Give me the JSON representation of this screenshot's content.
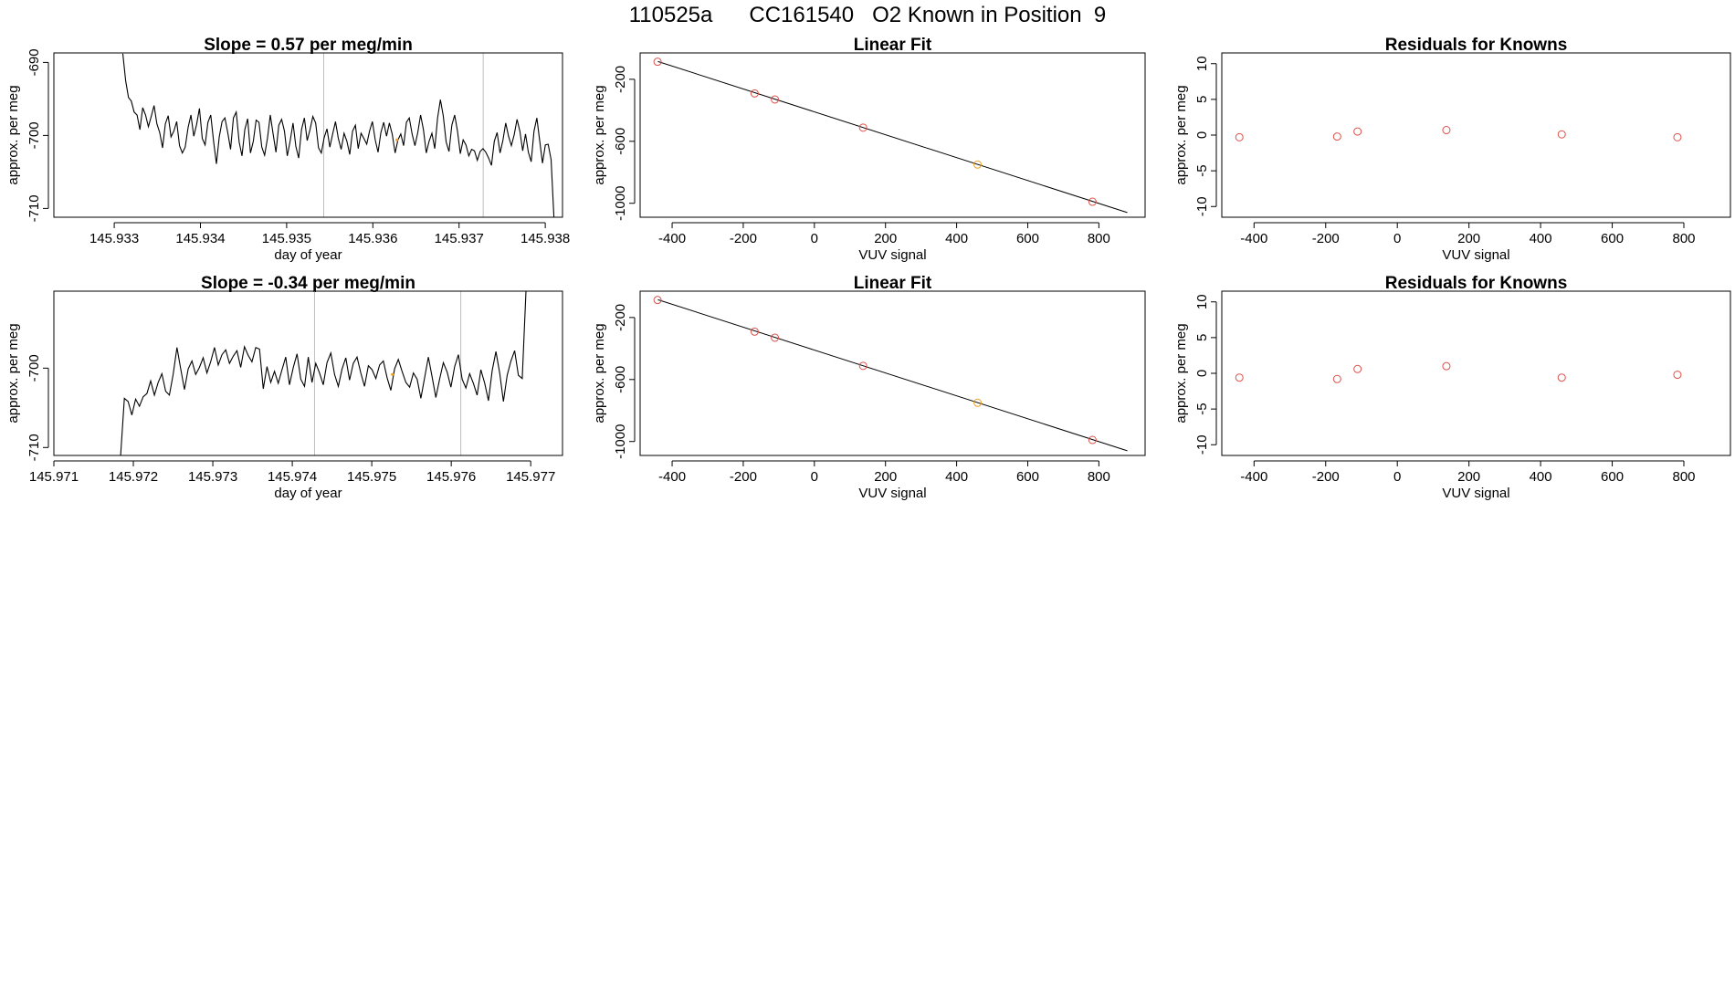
{
  "page": {
    "title": "110525a      CC161540   O2 Known in Position  9"
  },
  "colors": {
    "line": "#000000",
    "vline": "#bebebe",
    "point_red": "#e0504a",
    "point_orange": "#f0a020",
    "frame": "#000000"
  },
  "chart_data": [
    {
      "id": "ts1",
      "type": "line",
      "title": "Slope =  0.57  per meg/min",
      "xlabel": "day of year",
      "ylabel": "approx. per meg",
      "xlim": [
        145.9323,
        145.9382
      ],
      "ylim": [
        -711.2,
        -688.7
      ],
      "xticks": [
        "145.933",
        "145.934",
        "145.935",
        "145.936",
        "145.937",
        "145.938"
      ],
      "xtick_values": [
        145.933,
        145.934,
        145.935,
        145.936,
        145.937,
        145.938
      ],
      "yticks": [
        "-690",
        "-700",
        "-710"
      ],
      "ytick_values": [
        -690,
        -700,
        -710
      ],
      "vlines": [
        145.93543,
        145.93728
      ],
      "highlight": {
        "x": 145.93628,
        "y": -700.6
      },
      "series": [
        {
          "x_start": 145.9331,
          "x_end": 145.9381,
          "values": [
            -688.8,
            -692.5,
            -694.8,
            -695.3,
            -696.8,
            -697.2,
            -699.2,
            -696.2,
            -697.2,
            -698.8,
            -697.4,
            -695.9,
            -698.4,
            -699.6,
            -701.7,
            -698.4,
            -697.3,
            -700.2,
            -699.4,
            -698.1,
            -701.4,
            -702.4,
            -701.6,
            -698.9,
            -697.2,
            -700.1,
            -698.5,
            -696.3,
            -700.4,
            -701.3,
            -698.2,
            -697.2,
            -700.8,
            -703.9,
            -700.2,
            -698.1,
            -697.6,
            -699.6,
            -701.9,
            -697.6,
            -696.8,
            -700.9,
            -702.8,
            -699.2,
            -697.7,
            -702.4,
            -700.8,
            -697.9,
            -698.2,
            -701.6,
            -702.7,
            -700.4,
            -697.2,
            -699.8,
            -702.3,
            -698.6,
            -697.8,
            -699.4,
            -702.8,
            -700.8,
            -698.3,
            -701.5,
            -703.1,
            -699.2,
            -697.6,
            -700.7,
            -699.2,
            -697.4,
            -698.3,
            -701.7,
            -702.4,
            -700.3,
            -699.1,
            -701.6,
            -699.8,
            -698.1,
            -700.4,
            -701.9,
            -699.7,
            -700.8,
            -702.6,
            -699.4,
            -698.6,
            -701.8,
            -699.7,
            -700.4,
            -701.2,
            -699.4,
            -698.1,
            -700.6,
            -702.3,
            -699.6,
            -698.2,
            -700.1,
            -698.3,
            -699.8,
            -702.4,
            -700.6,
            -699.8,
            -701.4,
            -698.2,
            -697.6,
            -699.8,
            -701.4,
            -699.6,
            -697.2,
            -699.2,
            -702.4,
            -700.8,
            -699.7,
            -701.8,
            -697.6,
            -695.1,
            -697.3,
            -700.9,
            -702.2,
            -698.6,
            -697.2,
            -699.4,
            -702.5,
            -700.6,
            -701.3,
            -702.8,
            -701.9,
            -702.1,
            -703.4,
            -702.2,
            -701.8,
            -702.3,
            -703.1,
            -704.1,
            -700.8,
            -699.6,
            -702.4,
            -700.7,
            -698.3,
            -700.1,
            -701.4,
            -699.9,
            -697.8,
            -699.4,
            -702.1,
            -699.8,
            -702.3,
            -703.6,
            -699.4,
            -697.6,
            -700.7,
            -703.8,
            -701.3,
            -701.2,
            -703.3,
            -711.2
          ]
        }
      ]
    },
    {
      "id": "fit1",
      "type": "scatter",
      "title": "Linear Fit",
      "xlabel": "VUV signal",
      "ylabel": "approx. per meg",
      "xlim": [
        -490,
        930
      ],
      "ylim": [
        -1090,
        -30
      ],
      "xticks": [
        "-400",
        "-200",
        "0",
        "200",
        "400",
        "600",
        "800"
      ],
      "xtick_values": [
        -400,
        -200,
        0,
        200,
        400,
        600,
        800
      ],
      "yticks": [
        "-200",
        "-600",
        "-1000"
      ],
      "ytick_values": [
        -200,
        -600,
        -1000
      ],
      "fit_line": {
        "x": [
          -440,
          880
        ],
        "y": [
          -85,
          -1060
        ]
      },
      "points": [
        {
          "x": -441,
          "y": -87,
          "color": "red"
        },
        {
          "x": -168,
          "y": -291,
          "color": "red"
        },
        {
          "x": -111,
          "y": -330,
          "color": "red"
        },
        {
          "x": 137,
          "y": -512,
          "color": "red"
        },
        {
          "x": 459,
          "y": -750,
          "color": "orange"
        },
        {
          "x": 782,
          "y": -990,
          "color": "red"
        }
      ]
    },
    {
      "id": "res1",
      "type": "scatter",
      "title": "Residuals for Knowns",
      "xlabel": "VUV signal",
      "ylabel": "approx. per meg",
      "xlim": [
        -490,
        930
      ],
      "ylim": [
        -11.5,
        11.5
      ],
      "xticks": [
        "-400",
        "-200",
        "0",
        "200",
        "400",
        "600",
        "800"
      ],
      "xtick_values": [
        -400,
        -200,
        0,
        200,
        400,
        600,
        800
      ],
      "yticks": [
        "10",
        "5",
        "0",
        "-5",
        "-10"
      ],
      "ytick_values": [
        10,
        5,
        0,
        -5,
        -10
      ],
      "points": [
        {
          "x": -441,
          "y": -0.3,
          "color": "red"
        },
        {
          "x": -168,
          "y": -0.2,
          "color": "red"
        },
        {
          "x": -111,
          "y": 0.5,
          "color": "red"
        },
        {
          "x": 137,
          "y": 0.7,
          "color": "red"
        },
        {
          "x": 459,
          "y": 0.1,
          "color": "red"
        },
        {
          "x": 782,
          "y": -0.3,
          "color": "red"
        }
      ]
    },
    {
      "id": "ts2",
      "type": "line",
      "title": "Slope =  -0.34  per meg/min",
      "xlabel": "day of year",
      "ylabel": "approx. per meg",
      "xlim": [
        145.971,
        145.9774
      ],
      "ylim": [
        -711.0,
        -690.3
      ],
      "xticks": [
        "145.971",
        "145.972",
        "145.973",
        "145.974",
        "145.975",
        "145.976",
        "145.977"
      ],
      "xtick_values": [
        145.971,
        145.972,
        145.973,
        145.974,
        145.975,
        145.976,
        145.977
      ],
      "yticks": [
        "-700",
        "-710"
      ],
      "ytick_values": [
        -700,
        -710
      ],
      "vlines": [
        145.97428,
        145.97612
      ],
      "highlight": {
        "x": 145.97526,
        "y": -700.8
      },
      "series": [
        {
          "x_start": 145.97184,
          "x_end": 145.97694,
          "values": [
            -711.0,
            -703.8,
            -704.2,
            -705.9,
            -703.9,
            -704.8,
            -703.6,
            -703.2,
            -701.6,
            -703.4,
            -701.8,
            -700.7,
            -702.9,
            -703.4,
            -700.8,
            -697.4,
            -700.1,
            -702.7,
            -700.1,
            -699.1,
            -700.8,
            -699.9,
            -698.7,
            -700.6,
            -699.2,
            -697.4,
            -699.6,
            -698.3,
            -697.7,
            -699.4,
            -698.5,
            -697.8,
            -699.9,
            -697.3,
            -698.4,
            -699.2,
            -697.4,
            -697.6,
            -702.6,
            -699.8,
            -701.8,
            -700.4,
            -701.9,
            -700.2,
            -698.6,
            -702.1,
            -699.9,
            -698.2,
            -701.4,
            -702.3,
            -698.6,
            -701.8,
            -699.4,
            -700.6,
            -702.1,
            -699.3,
            -698.1,
            -700.8,
            -702.3,
            -700.1,
            -698.7,
            -701.5,
            -699.4,
            -698.6,
            -700.6,
            -702.3,
            -699.7,
            -700.2,
            -701.3,
            -699.6,
            -699.1,
            -701.2,
            -702.8,
            -700.1,
            -698.9,
            -700.4,
            -701.8,
            -702.4,
            -700.6,
            -701.4,
            -703.8,
            -701.2,
            -698.6,
            -701.1,
            -703.7,
            -701.4,
            -699.3,
            -700.5,
            -702.4,
            -699.8,
            -698.3,
            -701.4,
            -702.5,
            -700.7,
            -701.9,
            -703.4,
            -700.2,
            -701.9,
            -704.1,
            -700.3,
            -697.9,
            -700.6,
            -704.2,
            -700.9,
            -699.1,
            -697.8,
            -700.9,
            -701.3,
            -690.3
          ]
        }
      ]
    },
    {
      "id": "fit2",
      "type": "scatter",
      "title": "Linear Fit",
      "xlabel": "VUV signal",
      "ylabel": "approx. per meg",
      "xlim": [
        -490,
        930
      ],
      "ylim": [
        -1090,
        -30
      ],
      "xticks": [
        "-400",
        "-200",
        "0",
        "200",
        "400",
        "600",
        "800"
      ],
      "xtick_values": [
        -400,
        -200,
        0,
        200,
        400,
        600,
        800
      ],
      "yticks": [
        "-200",
        "-600",
        "-1000"
      ],
      "ytick_values": [
        -200,
        -600,
        -1000
      ],
      "fit_line": {
        "x": [
          -440,
          880
        ],
        "y": [
          -85,
          -1060
        ]
      },
      "points": [
        {
          "x": -441,
          "y": -87,
          "color": "red"
        },
        {
          "x": -168,
          "y": -291,
          "color": "red"
        },
        {
          "x": -111,
          "y": -330,
          "color": "red"
        },
        {
          "x": 137,
          "y": -512,
          "color": "red"
        },
        {
          "x": 459,
          "y": -750,
          "color": "orange"
        },
        {
          "x": 782,
          "y": -990,
          "color": "red"
        }
      ]
    },
    {
      "id": "res2",
      "type": "scatter",
      "title": "Residuals for Knowns",
      "xlabel": "VUV signal",
      "ylabel": "approx. per meg",
      "xlim": [
        -490,
        930
      ],
      "ylim": [
        -11.5,
        11.5
      ],
      "xticks": [
        "-400",
        "-200",
        "0",
        "200",
        "400",
        "600",
        "800"
      ],
      "xtick_values": [
        -400,
        -200,
        0,
        200,
        400,
        600,
        800
      ],
      "yticks": [
        "10",
        "5",
        "0",
        "-5",
        "-10"
      ],
      "ytick_values": [
        10,
        5,
        0,
        -5,
        -10
      ],
      "points": [
        {
          "x": -441,
          "y": -0.6,
          "color": "red"
        },
        {
          "x": -168,
          "y": -0.8,
          "color": "red"
        },
        {
          "x": -111,
          "y": 0.6,
          "color": "red"
        },
        {
          "x": 137,
          "y": 1.0,
          "color": "red"
        },
        {
          "x": 459,
          "y": -0.6,
          "color": "red"
        },
        {
          "x": 782,
          "y": -0.2,
          "color": "red"
        }
      ]
    }
  ]
}
